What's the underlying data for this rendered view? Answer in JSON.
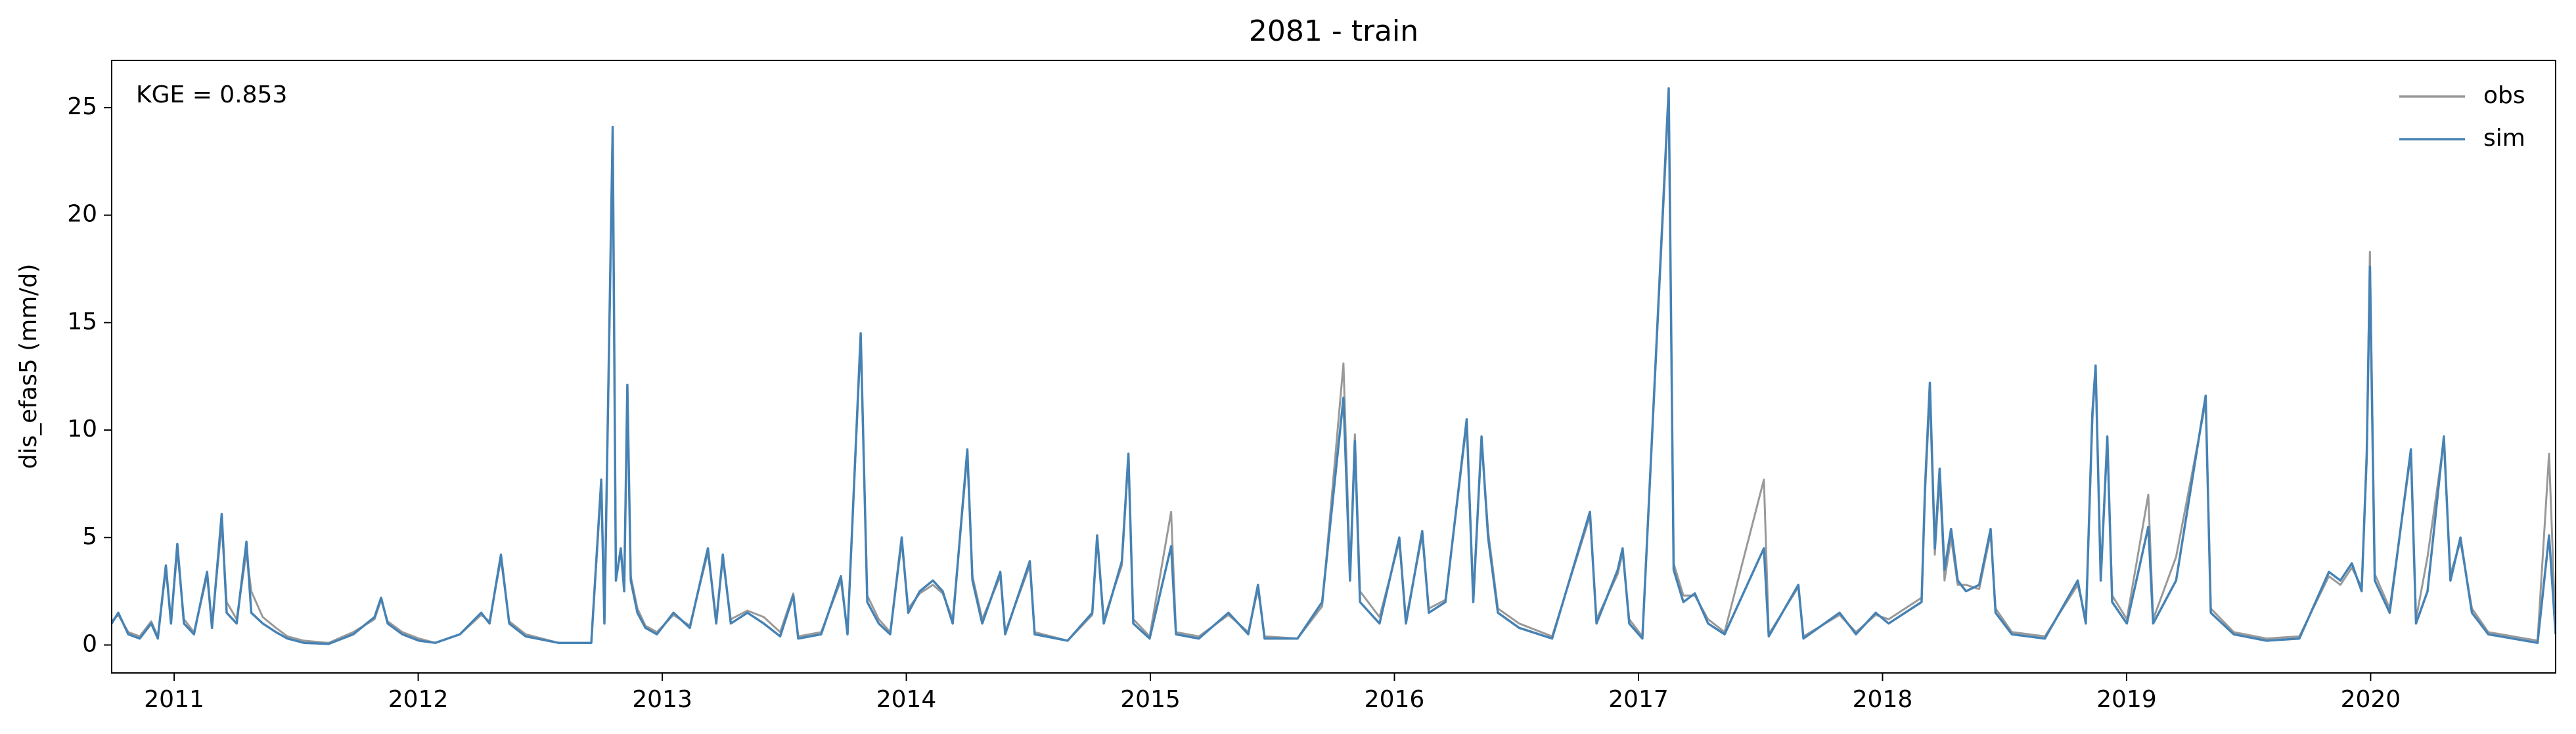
{
  "chart_data": {
    "type": "line",
    "title": "2081 - train",
    "ylabel": "dis_efas5 (mm/d)",
    "annotation": "KGE = 0.853",
    "legend": "upper right",
    "xlim": [
      2010.744,
      2020.758
    ],
    "xticks": [
      2011,
      2012,
      2013,
      2014,
      2015,
      2016,
      2017,
      2018,
      2019,
      2020
    ],
    "ylim": [
      -1.3,
      27.2
    ],
    "yticks": [
      0,
      5,
      10,
      15,
      20,
      25
    ],
    "x": [
      2010.744,
      2010.771,
      2010.812,
      2010.859,
      2010.906,
      2010.933,
      2010.966,
      2010.987,
      2011.013,
      2011.04,
      2011.081,
      2011.135,
      2011.155,
      2011.195,
      2011.215,
      2011.256,
      2011.296,
      2011.316,
      2011.363,
      2011.417,
      2011.464,
      2011.532,
      2011.633,
      2011.734,
      2011.821,
      2011.848,
      2011.875,
      2011.935,
      2012.003,
      2012.07,
      2012.171,
      2012.258,
      2012.292,
      2012.339,
      2012.373,
      2012.44,
      2012.575,
      2012.709,
      2012.75,
      2012.763,
      2012.797,
      2012.81,
      2012.83,
      2012.844,
      2012.857,
      2012.871,
      2012.898,
      2012.931,
      2012.978,
      2013.046,
      2013.113,
      2013.187,
      2013.221,
      2013.248,
      2013.281,
      2013.349,
      2013.416,
      2013.483,
      2013.537,
      2013.557,
      2013.651,
      2013.732,
      2013.759,
      2013.813,
      2013.84,
      2013.887,
      2013.934,
      2013.981,
      2014.008,
      2014.055,
      2014.109,
      2014.149,
      2014.19,
      2014.25,
      2014.271,
      2014.311,
      2014.385,
      2014.405,
      2014.506,
      2014.526,
      2014.661,
      2014.762,
      2014.782,
      2014.809,
      2014.883,
      2014.91,
      2014.93,
      2014.997,
      2015.085,
      2015.105,
      2015.199,
      2015.32,
      2015.401,
      2015.441,
      2015.468,
      2015.603,
      2015.704,
      2015.791,
      2015.818,
      2015.838,
      2015.859,
      2015.939,
      2016.02,
      2016.047,
      2016.114,
      2016.141,
      2016.209,
      2016.296,
      2016.323,
      2016.357,
      2016.384,
      2016.424,
      2016.511,
      2016.646,
      2016.801,
      2016.828,
      2016.915,
      2016.935,
      2016.962,
      2017.016,
      2017.124,
      2017.144,
      2017.184,
      2017.231,
      2017.285,
      2017.353,
      2017.514,
      2017.534,
      2017.655,
      2017.676,
      2017.824,
      2017.891,
      2017.972,
      2018.025,
      2018.16,
      2018.174,
      2018.194,
      2018.214,
      2018.234,
      2018.254,
      2018.281,
      2018.308,
      2018.342,
      2018.396,
      2018.443,
      2018.463,
      2018.53,
      2018.665,
      2018.8,
      2018.833,
      2018.86,
      2018.873,
      2018.894,
      2018.921,
      2018.941,
      2019.001,
      2019.089,
      2019.109,
      2019.203,
      2019.324,
      2019.345,
      2019.439,
      2019.573,
      2019.708,
      2019.829,
      2019.876,
      2019.923,
      2019.963,
      2019.984,
      2019.997,
      2020.017,
      2020.078,
      2020.165,
      2020.186,
      2020.233,
      2020.3,
      2020.327,
      2020.368,
      2020.415,
      2020.482,
      2020.583,
      2020.684,
      2020.731,
      2020.758
    ],
    "series": [
      {
        "name": "obs",
        "color": "#999999",
        "values": [
          1.1,
          1.4,
          0.6,
          0.4,
          1.1,
          0.4,
          3.5,
          1.2,
          4.4,
          1.2,
          0.6,
          3.2,
          1.0,
          5.6,
          2.0,
          1.2,
          4.3,
          2.5,
          1.3,
          0.8,
          0.4,
          0.2,
          0.1,
          0.6,
          1.2,
          2.1,
          1.1,
          0.6,
          0.3,
          0.1,
          0.5,
          1.4,
          1.1,
          4.0,
          1.1,
          0.5,
          0.1,
          0.1,
          7.5,
          1.2,
          23.5,
          3.2,
          4.3,
          2.7,
          11.8,
          3.2,
          1.7,
          0.9,
          0.6,
          1.4,
          0.9,
          4.3,
          1.2,
          4.0,
          1.2,
          1.6,
          1.3,
          0.6,
          2.4,
          0.4,
          0.6,
          3.0,
          0.6,
          14.2,
          2.3,
          1.2,
          0.6,
          4.8,
          1.7,
          2.4,
          2.8,
          2.4,
          1.2,
          8.8,
          3.2,
          1.2,
          3.2,
          0.6,
          3.7,
          0.6,
          0.2,
          1.4,
          4.9,
          1.2,
          3.7,
          8.7,
          1.2,
          0.4,
          6.2,
          0.6,
          0.4,
          1.4,
          0.6,
          2.6,
          0.4,
          0.3,
          1.8,
          13.1,
          3.3,
          9.8,
          2.5,
          1.3,
          4.8,
          1.2,
          5.1,
          1.7,
          2.1,
          10.3,
          2.3,
          9.5,
          5.3,
          1.7,
          1.0,
          0.4,
          6.0,
          1.2,
          3.3,
          4.3,
          1.2,
          0.4,
          25.5,
          3.8,
          2.3,
          2.3,
          1.2,
          0.6,
          7.7,
          0.5,
          2.7,
          0.4,
          1.4,
          0.6,
          1.4,
          1.2,
          2.2,
          7.0,
          11.8,
          4.2,
          7.8,
          3.0,
          5.0,
          2.8,
          2.8,
          2.6,
          5.2,
          1.7,
          0.6,
          0.4,
          2.8,
          1.2,
          10.5,
          12.8,
          3.3,
          9.5,
          2.3,
          1.2,
          7.0,
          1.2,
          4.1,
          11.3,
          1.7,
          0.6,
          0.3,
          0.4,
          3.2,
          2.8,
          3.6,
          2.7,
          8.6,
          18.3,
          3.3,
          1.7,
          8.9,
          1.2,
          4.1,
          9.5,
          3.3,
          4.8,
          1.7,
          0.6,
          0.4,
          0.2,
          8.9,
          0.6
        ]
      },
      {
        "name": "sim",
        "color": "#4682b4",
        "values": [
          1.0,
          1.5,
          0.5,
          0.3,
          1.0,
          0.3,
          3.7,
          1.0,
          4.7,
          1.0,
          0.5,
          3.4,
          0.8,
          6.1,
          1.5,
          1.0,
          4.8,
          1.5,
          1.0,
          0.6,
          0.3,
          0.1,
          0.05,
          0.5,
          1.3,
          2.2,
          1.0,
          0.5,
          0.2,
          0.1,
          0.5,
          1.5,
          1.0,
          4.2,
          1.0,
          0.4,
          0.1,
          0.1,
          7.7,
          1.0,
          24.1,
          3.0,
          4.5,
          2.5,
          12.1,
          3.0,
          1.5,
          0.8,
          0.5,
          1.5,
          0.8,
          4.5,
          1.0,
          4.2,
          1.0,
          1.5,
          1.0,
          0.4,
          2.3,
          0.3,
          0.5,
          3.2,
          0.5,
          14.5,
          2.0,
          1.0,
          0.5,
          5.0,
          1.5,
          2.5,
          3.0,
          2.5,
          1.0,
          9.1,
          3.0,
          1.0,
          3.4,
          0.5,
          3.9,
          0.5,
          0.2,
          1.5,
          5.1,
          1.0,
          3.9,
          8.9,
          1.0,
          0.3,
          4.6,
          0.5,
          0.3,
          1.5,
          0.5,
          2.8,
          0.3,
          0.3,
          2.0,
          11.5,
          3.0,
          9.5,
          2.0,
          1.0,
          5.0,
          1.0,
          5.3,
          1.5,
          2.0,
          10.5,
          2.0,
          9.7,
          5.0,
          1.5,
          0.8,
          0.3,
          6.2,
          1.0,
          3.5,
          4.5,
          1.0,
          0.3,
          25.9,
          3.5,
          2.0,
          2.4,
          1.0,
          0.5,
          4.5,
          0.4,
          2.8,
          0.3,
          1.5,
          0.5,
          1.5,
          1.0,
          2.0,
          7.3,
          12.2,
          4.5,
          8.2,
          3.5,
          5.4,
          3.0,
          2.5,
          2.8,
          5.4,
          1.5,
          0.5,
          0.3,
          3.0,
          1.0,
          10.8,
          13.0,
          3.0,
          9.7,
          2.0,
          1.0,
          5.5,
          1.0,
          3.0,
          11.6,
          1.5,
          0.5,
          0.2,
          0.3,
          3.4,
          3.0,
          3.8,
          2.5,
          8.9,
          17.6,
          3.0,
          1.5,
          9.1,
          1.0,
          2.5,
          9.7,
          3.0,
          5.0,
          1.5,
          0.5,
          0.3,
          0.1,
          5.1,
          0.5
        ]
      }
    ]
  }
}
